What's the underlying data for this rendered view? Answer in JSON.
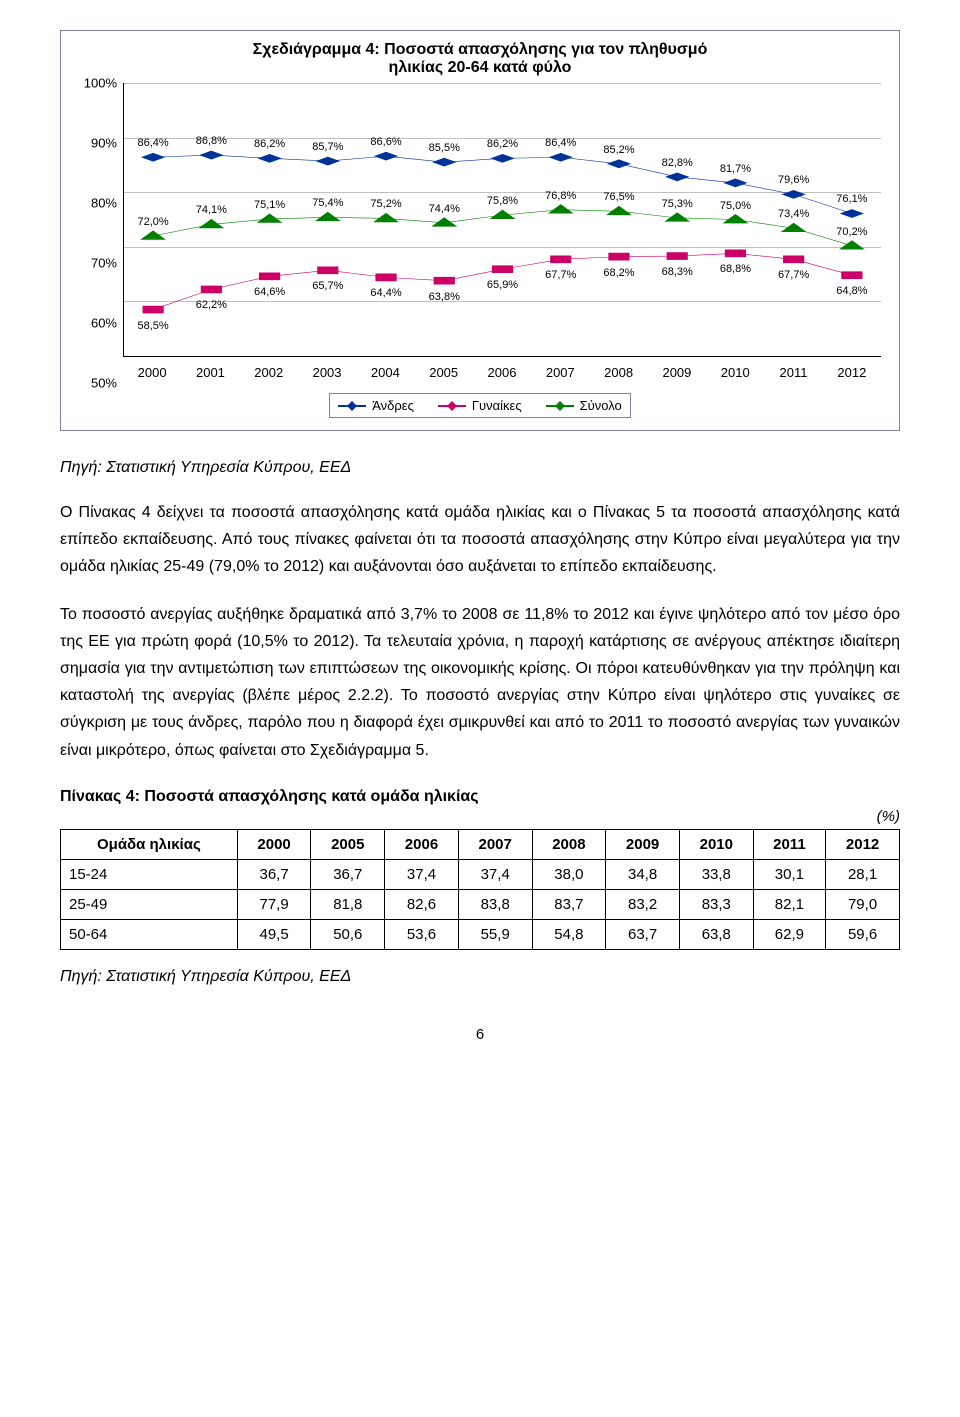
{
  "chart": {
    "title": "Σχεδιάγραμμα 4: Ποσοστά απασχόλησης για τον πληθυσμό\nηλικίας 20-64 κατά φύλο",
    "title_fontsize": 16,
    "ylim": [
      50,
      100
    ],
    "ytick_step": 10,
    "yticks": [
      "50%",
      "60%",
      "70%",
      "80%",
      "90%",
      "100%"
    ],
    "years": [
      "2000",
      "2001",
      "2002",
      "2003",
      "2004",
      "2005",
      "2006",
      "2007",
      "2008",
      "2009",
      "2010",
      "2011",
      "2012"
    ],
    "series": [
      {
        "name": "Άνδρες",
        "color": "#003399",
        "marker": "diamond",
        "values": [
          86.4,
          86.8,
          86.2,
          85.7,
          86.6,
          85.5,
          86.2,
          86.4,
          85.2,
          82.8,
          81.7,
          79.6,
          76.1
        ],
        "labels": [
          "86,4%",
          "86,8%",
          "86,2%",
          "85,7%",
          "86,6%",
          "85,5%",
          "86,2%",
          "86,4%",
          "85,2%",
          "82,8%",
          "81,7%",
          "79,6%",
          "76,1%"
        ],
        "label_dy": -14
      },
      {
        "name": "Σύνολο",
        "color": "#008000",
        "marker": "triangle",
        "values": [
          72.0,
          74.1,
          75.1,
          75.4,
          75.2,
          74.4,
          75.8,
          76.8,
          76.5,
          75.3,
          75.0,
          73.4,
          70.2
        ],
        "labels": [
          "72,0%",
          "74,1%",
          "75,1%",
          "75,4%",
          "75,2%",
          "74,4%",
          "75,8%",
          "76,8%",
          "76,5%",
          "75,3%",
          "75,0%",
          "73,4%",
          "70,2%"
        ],
        "label_dy": -14
      },
      {
        "name": "Γυναίκες",
        "color": "#cc0066",
        "marker": "square",
        "values": [
          58.5,
          62.2,
          64.6,
          65.7,
          64.4,
          63.8,
          65.9,
          67.7,
          68.2,
          68.3,
          68.8,
          67.7,
          64.8
        ],
        "labels": [
          "58,5%",
          "62,2%",
          "64,6%",
          "65,7%",
          "64,4%",
          "63,8%",
          "65,9%",
          "67,7%",
          "68,2%",
          "68,3%",
          "68,8%",
          "67,7%",
          "64,8%"
        ],
        "label_dy": 16
      }
    ],
    "legend_order": [
      "Άνδρες",
      "Γυναίκες",
      "Σύνολο"
    ],
    "legend_colors": {
      "Άνδρες": "#003399",
      "Γυναίκες": "#cc0066",
      "Σύνολο": "#008000"
    },
    "background_color": "#ffffff",
    "grid_color": "#c0c0c0"
  },
  "source_line": "Πηγή: Στατιστική Υπηρεσία Κύπρου, ΕΕΔ",
  "para1": "Ο Πίνακας 4 δείχνει τα ποσοστά απασχόλησης κατά ομάδα ηλικίας και ο Πίνακας 5 τα ποσοστά απασχόλησης κατά επίπεδο εκπαίδευσης. Από τους πίνακες φαίνεται ότι τα ποσοστά απασχόλησης στην Κύπρο είναι μεγαλύτερα για την ομάδα ηλικίας 25-49 (79,0% το 2012) και αυξάνονται όσο αυξάνεται το επίπεδο εκπαίδευσης.",
  "para2": "Το ποσοστό ανεργίας αυξήθηκε δραματικά από 3,7% το 2008 σε 11,8% το 2012 και έγινε ψηλότερο από τον μέσο όρο της ΕΕ για πρώτη φορά (10,5% το 2012). Τα τελευταία χρόνια, η παροχή κατάρτισης σε ανέργους απέκτησε ιδιαίτερη σημασία για την αντιμετώπιση των επιπτώσεων της οικονομικής κρίσης. Οι πόροι κατευθύνθηκαν για την πρόληψη και καταστολή της ανεργίας (βλέπε μέρος 2.2.2). Το ποσοστό ανεργίας στην Κύπρο είναι ψηλότερο στις γυναίκες σε σύγκριση με τους άνδρες, παρόλο που η διαφορά έχει σμικρυνθεί και από το 2011 το ποσοστό ανεργίας των γυναικών είναι μικρότερο, όπως φαίνεται στο Σχεδιάγραμμα 5.",
  "table": {
    "title": "Πίνακας 4: Ποσοστά απασχόλησης κατά ομάδα ηλικίας",
    "unit": "(%)",
    "columns": [
      "Ομάδα ηλικίας",
      "2000",
      "2005",
      "2006",
      "2007",
      "2008",
      "2009",
      "2010",
      "2011",
      "2012"
    ],
    "rows": [
      [
        "15-24",
        "36,7",
        "36,7",
        "37,4",
        "37,4",
        "38,0",
        "34,8",
        "33,8",
        "30,1",
        "28,1"
      ],
      [
        "25-49",
        "77,9",
        "81,8",
        "82,6",
        "83,8",
        "83,7",
        "83,2",
        "83,3",
        "82,1",
        "79,0"
      ],
      [
        "50-64",
        "49,5",
        "50,6",
        "53,6",
        "55,9",
        "54,8",
        "63,7",
        "63,8",
        "62,9",
        "59,6"
      ]
    ]
  },
  "source_line2": "Πηγή: Στατιστική Υπηρεσία Κύπρου, ΕΕΔ",
  "page_number": "6"
}
